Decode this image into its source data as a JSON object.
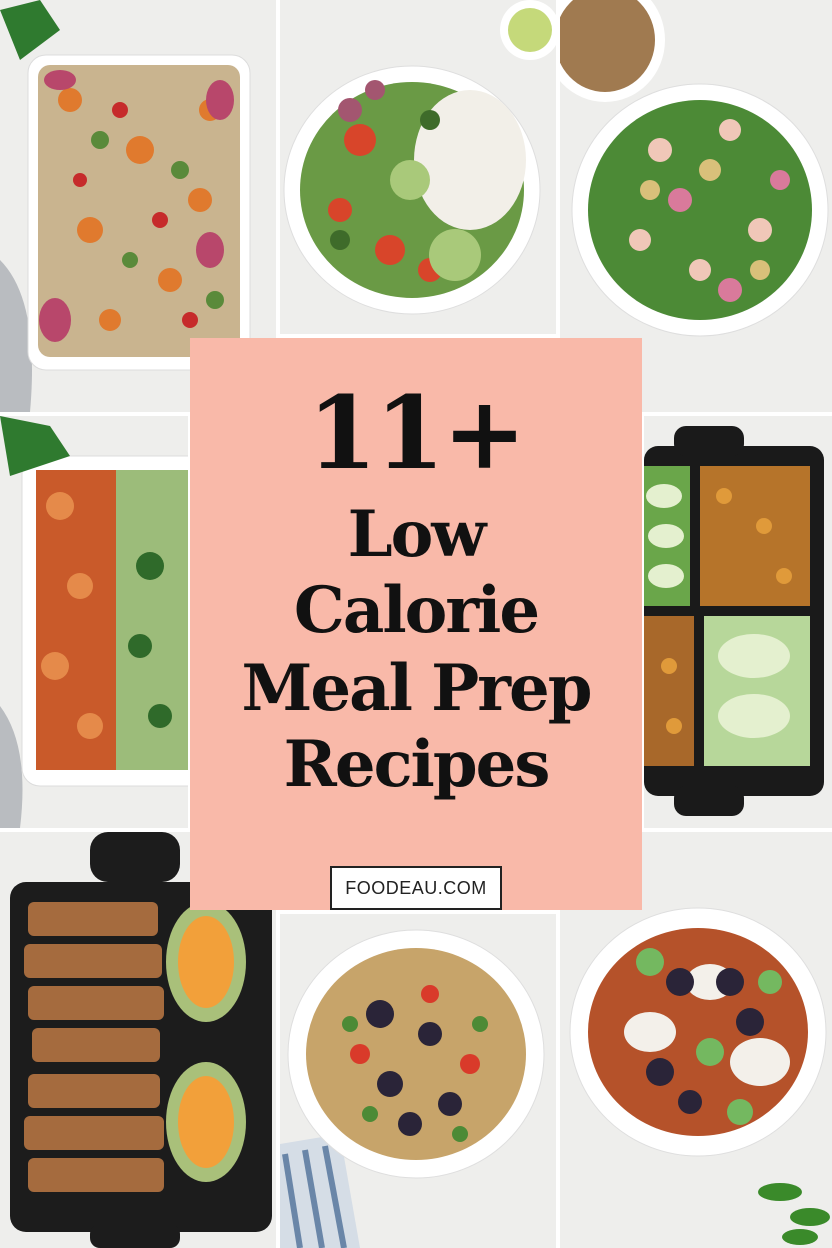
{
  "title": {
    "number": "11+",
    "line1": "Low",
    "line2": "Calorie",
    "line3": "Meal Prep",
    "line4": "Recipes"
  },
  "site": "FOODEAU.COM",
  "colors": {
    "panel": "#f9b9a9",
    "text": "#111111",
    "background": "#f2f2f0"
  }
}
